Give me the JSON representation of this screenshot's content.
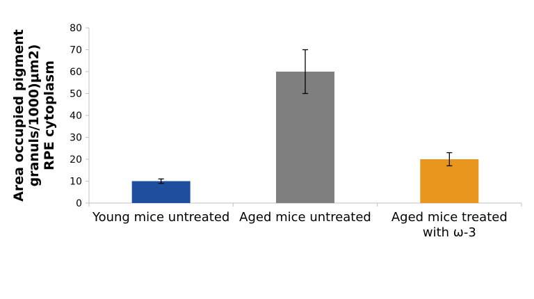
{
  "chart_data": {
    "type": "bar",
    "categories": [
      [
        "Young mice untreated"
      ],
      [
        "Aged mice untreated"
      ],
      [
        "Aged mice treated",
        "with ω-3"
      ]
    ],
    "values": [
      10,
      60,
      20
    ],
    "errors": [
      1,
      10,
      3
    ],
    "colors": [
      "#1f4e9c",
      "#7f7f7f",
      "#e8961e"
    ],
    "ylabel_lines": [
      "Area occupied pigment",
      "granuls/1000)μm2)",
      "RPE cytoplasm"
    ],
    "ylim": [
      0,
      80
    ],
    "yticks": [
      0,
      10,
      20,
      30,
      40,
      50,
      60,
      70,
      80
    ],
    "grid": false,
    "legend": "none"
  }
}
